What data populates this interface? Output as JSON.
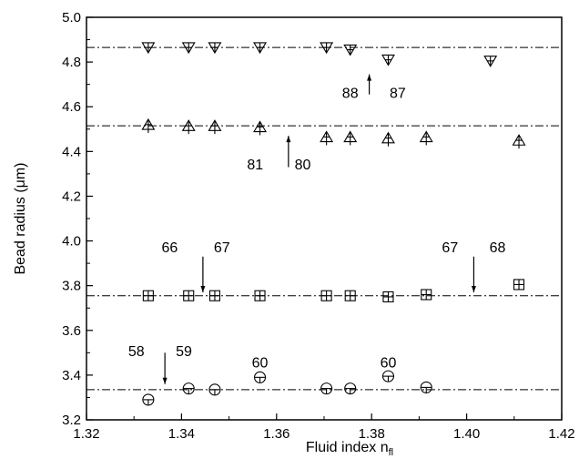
{
  "chart_data": {
    "type": "scatter",
    "xlabel": "Fluid index n",
    "xlabel_sub": "fl",
    "ylabel": "Bead radius  (",
    "ylabel_mu": "μ",
    "ylabel_end": "m)",
    "xlim": [
      1.32,
      1.42
    ],
    "ylim": [
      3.2,
      5.0
    ],
    "xticks": [
      "1.32",
      "1.34",
      "1.36",
      "1.38",
      "1.40",
      "1.42"
    ],
    "yticks": [
      "3.2",
      "3.4",
      "3.6",
      "3.8",
      "4.0",
      "4.2",
      "4.4",
      "4.6",
      "4.8",
      "5.0"
    ],
    "reference_lines": [
      4.865,
      4.515,
      3.755,
      3.335
    ],
    "series": [
      {
        "marker": "triangle-down",
        "points": [
          [
            1.333,
            4.865
          ],
          [
            1.3415,
            4.865
          ],
          [
            1.347,
            4.865
          ],
          [
            1.3565,
            4.865
          ],
          [
            1.3705,
            4.865
          ],
          [
            1.3755,
            4.855
          ],
          [
            1.3835,
            4.81
          ],
          [
            1.405,
            4.805
          ]
        ]
      },
      {
        "marker": "triangle-up",
        "points": [
          [
            1.333,
            4.52
          ],
          [
            1.3415,
            4.515
          ],
          [
            1.347,
            4.515
          ],
          [
            1.3565,
            4.51
          ],
          [
            1.3705,
            4.465
          ],
          [
            1.3755,
            4.465
          ],
          [
            1.3835,
            4.46
          ],
          [
            1.3915,
            4.465
          ],
          [
            1.411,
            4.45
          ]
        ]
      },
      {
        "marker": "square",
        "points": [
          [
            1.333,
            3.755
          ],
          [
            1.3415,
            3.755
          ],
          [
            1.347,
            3.755
          ],
          [
            1.3565,
            3.755
          ],
          [
            1.3705,
            3.755
          ],
          [
            1.3755,
            3.755
          ],
          [
            1.3835,
            3.75
          ],
          [
            1.3915,
            3.76
          ],
          [
            1.411,
            3.805
          ]
        ]
      },
      {
        "marker": "circle",
        "points": [
          [
            1.333,
            3.29
          ],
          [
            1.3415,
            3.34
          ],
          [
            1.347,
            3.335
          ],
          [
            1.3565,
            3.39
          ],
          [
            1.3705,
            3.34
          ],
          [
            1.3755,
            3.34
          ],
          [
            1.3835,
            3.395
          ],
          [
            1.3915,
            3.345
          ]
        ]
      }
    ],
    "annotations": [
      {
        "text": "88",
        "x": 1.3755,
        "y": 4.64
      },
      {
        "text": "87",
        "x": 1.3855,
        "y": 4.64
      },
      {
        "text": "81",
        "x": 1.3555,
        "y": 4.32
      },
      {
        "text": "80",
        "x": 1.3655,
        "y": 4.32
      },
      {
        "text": "66",
        "x": 1.3375,
        "y": 3.95
      },
      {
        "text": "67",
        "x": 1.3485,
        "y": 3.95
      },
      {
        "text": "67",
        "x": 1.3965,
        "y": 3.95
      },
      {
        "text": "68",
        "x": 1.4065,
        "y": 3.95
      },
      {
        "text": "58",
        "x": 1.3305,
        "y": 3.485
      },
      {
        "text": "59",
        "x": 1.3405,
        "y": 3.485
      },
      {
        "text": "60",
        "x": 1.3565,
        "y": 3.435
      },
      {
        "text": "60",
        "x": 1.3835,
        "y": 3.435
      }
    ],
    "arrows": [
      {
        "direction": "up",
        "x": 1.3795,
        "y_from": 4.655,
        "y_to": 4.745
      },
      {
        "direction": "up",
        "x": 1.3625,
        "y_from": 4.33,
        "y_to": 4.47
      },
      {
        "direction": "down",
        "x": 1.3445,
        "y_from": 3.93,
        "y_to": 3.77
      },
      {
        "direction": "down",
        "x": 1.4015,
        "y_from": 3.93,
        "y_to": 3.77
      },
      {
        "direction": "down",
        "x": 1.3365,
        "y_from": 3.5,
        "y_to": 3.36
      }
    ]
  }
}
